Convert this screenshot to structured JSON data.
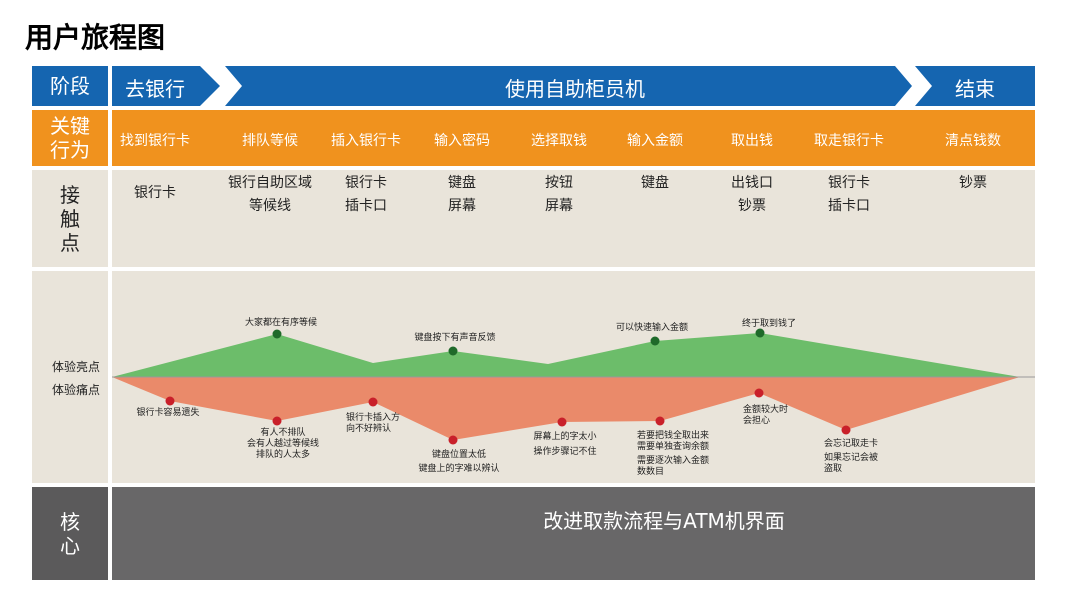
{
  "title": "用户旅程图",
  "stages": {
    "label": "阶段",
    "items": [
      "去银行",
      "使用自助柜员机",
      "结束"
    ]
  },
  "actions": {
    "label": "关键行为",
    "items": [
      "找到银行卡",
      "排队等候",
      "插入银行卡",
      "输入密码",
      "选择取钱",
      "输入金额",
      "取出钱",
      "取走银行卡",
      "清点钱数"
    ]
  },
  "touchpoints": {
    "label": "接触点",
    "items": [
      [
        "银行卡"
      ],
      [
        "银行自助区域",
        "等候线"
      ],
      [
        "银行卡",
        "插卡口"
      ],
      [
        "键盘",
        "屏幕"
      ],
      [
        "按钮",
        "屏幕"
      ],
      [
        "键盘"
      ],
      [
        "出钱口",
        "钞票"
      ],
      [
        "银行卡",
        "插卡口"
      ],
      [
        "钞票"
      ]
    ]
  },
  "experience": {
    "high_label": "体验亮点",
    "low_label": "体验痛点",
    "highs": [
      [
        "大家都在有序等候"
      ],
      [
        "键盘按下有声音反馈"
      ],
      [
        "可以快速输入金额"
      ],
      [
        "终于取到钱了"
      ]
    ],
    "lows": [
      [
        "银行卡容易遗失"
      ],
      [
        "有人不排队",
        "会有人越过等候线",
        "排队的人太多"
      ],
      [
        "银行卡插入方",
        "向不好辨认"
      ],
      [
        "键盘位置太低",
        "键盘上的字难以辨认"
      ],
      [
        "屏幕上的字太小",
        "操作步骤记不住"
      ],
      [
        "若要把钱全取出来",
        "需要单独查询余额",
        "需要逐次输入金额",
        "数数目"
      ],
      [
        "金额较大时",
        "会担心"
      ],
      [
        "会忘记取走卡",
        "如果忘记会被",
        "盗取"
      ]
    ]
  },
  "core": {
    "label": "核心",
    "text": "改进取款流程与ATM机界面"
  }
}
